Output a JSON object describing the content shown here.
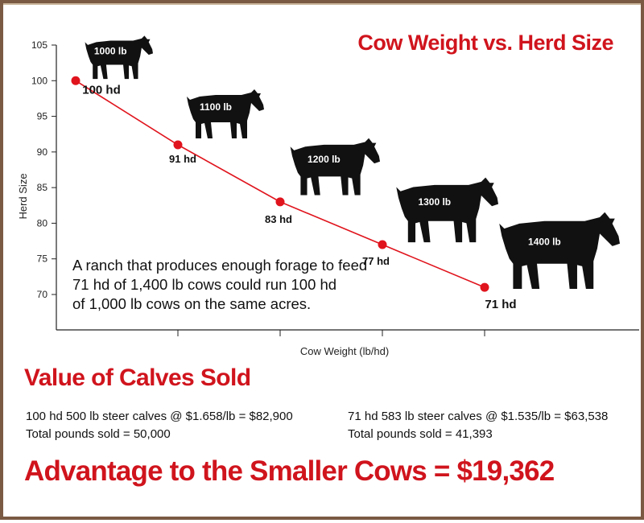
{
  "colors": {
    "accent": "#d0141d",
    "line": "#e0141d",
    "cow": "#111111",
    "border": "#7a5a43"
  },
  "chart_data": {
    "type": "line",
    "title": "Cow Weight vs. Herd Size",
    "xlabel": "Cow Weight (lb/hd)",
    "ylabel": "Herd Size",
    "ylim": [
      70,
      105
    ],
    "y_ticks": [
      "105",
      "100",
      "95",
      "90",
      "85",
      "80",
      "75",
      "70"
    ],
    "grid": false,
    "x": [
      1000,
      1100,
      1200,
      1300,
      1400
    ],
    "values": [
      100,
      91,
      83,
      77,
      71
    ],
    "point_labels": [
      "100 hd",
      "91 hd",
      "83 hd",
      "77 hd",
      "71 hd"
    ],
    "cow_labels": [
      "1000 lb",
      "1100 lb",
      "1200 lb",
      "1300 lb",
      "1400 lb"
    ]
  },
  "annotation": {
    "lines": [
      "A ranch that produces enough forage to feed",
      "71 hd of 1,400 lb cows could run 100 hd",
      "of 1,000 lb cows on the same acres."
    ]
  },
  "value_section": {
    "title": "Value of Calves Sold",
    "left": {
      "line1": "100 hd 500 lb steer calves @ $1.658/lb = $82,900",
      "line2": "Total pounds sold = 50,000"
    },
    "right": {
      "line1": "71 hd 583 lb steer calves @ $1.535/lb = $63,538",
      "line2": "Total pounds sold = 41,393"
    }
  },
  "advantage": "Advantage to the Smaller Cows = $19,362"
}
